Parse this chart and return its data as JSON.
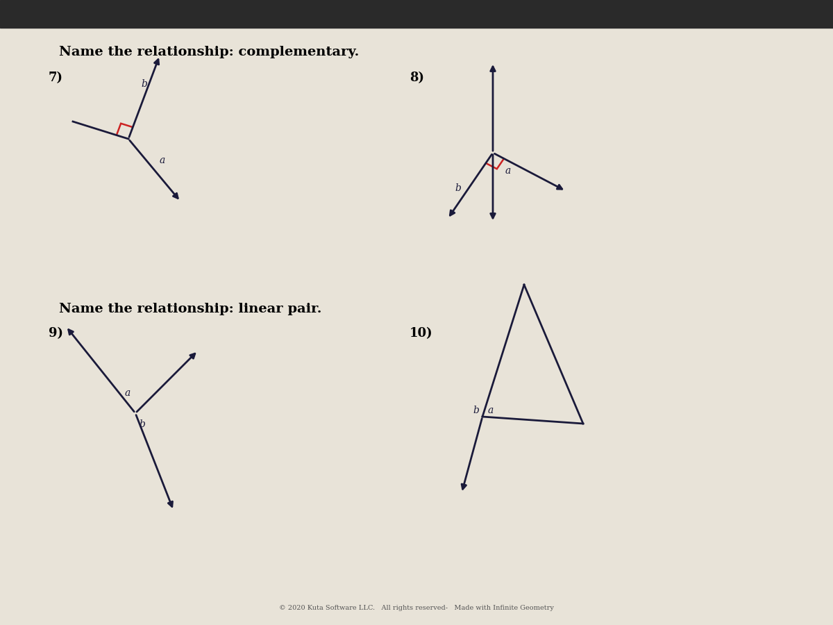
{
  "bg_color": "#d8d3c8",
  "paper_color": "#e8e3d8",
  "title1": "Name the relationship: complementary.",
  "title2": "Name the relationship: linear pair.",
  "title_fontsize": 14,
  "label_fontsize": 10,
  "number_fontsize": 13,
  "line_color": "#1a1a3a",
  "right_angle_color": "#cc2222",
  "footer": "© 2020 Kuta Software LLC.   All rights reserved-   Made with Infinite Geometry"
}
